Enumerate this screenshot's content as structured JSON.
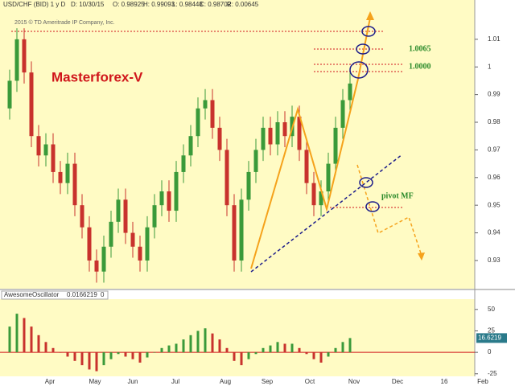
{
  "chart_data": {
    "type": "candlestick",
    "header": [
      "USD/CHF (BID) 1 y D",
      "D: 10/30/15",
      "O: 0.98925",
      "H: 0.99093",
      "L: 0.98448",
      "C: 0.98702",
      "R: 0.00645"
    ],
    "copyright": "2015 © TD Ameritrade IP Company, Inc.",
    "title": "Masterforex-V",
    "annotations": [
      "1.0065",
      "1.0000",
      "pivot MF"
    ],
    "month_labels": [
      "Apr",
      "May",
      "Jun",
      "Jul",
      "Aug",
      "Sep",
      "Oct",
      "Nov",
      "Dec",
      "16",
      "Feb"
    ],
    "ylim": [
      0.9201,
      1.0213
    ],
    "yticks": [
      0.93,
      0.94,
      0.95,
      0.96,
      0.97,
      0.98,
      0.99,
      1,
      1.01
    ],
    "candles": [
      [
        0.985,
        0.999,
        0.981,
        0.995
      ],
      [
        0.995,
        1.014,
        0.991,
        1.01
      ],
      [
        1.01,
        1.014,
        0.994,
        0.998
      ],
      [
        0.998,
        1.002,
        0.971,
        0.975
      ],
      [
        0.975,
        0.979,
        0.964,
        0.968
      ],
      [
        0.968,
        0.976,
        0.964,
        0.972
      ],
      [
        0.972,
        0.976,
        0.958,
        0.962
      ],
      [
        0.962,
        0.966,
        0.954,
        0.958
      ],
      [
        0.958,
        0.969,
        0.954,
        0.965
      ],
      [
        0.965,
        0.969,
        0.946,
        0.95
      ],
      [
        0.95,
        0.954,
        0.938,
        0.942
      ],
      [
        0.942,
        0.946,
        0.926,
        0.93
      ],
      [
        0.93,
        0.934,
        0.922,
        0.926
      ],
      [
        0.926,
        0.939,
        0.922,
        0.935
      ],
      [
        0.935,
        0.948,
        0.931,
        0.944
      ],
      [
        0.944,
        0.956,
        0.94,
        0.952
      ],
      [
        0.952,
        0.956,
        0.936,
        0.94
      ],
      [
        0.94,
        0.944,
        0.931,
        0.935
      ],
      [
        0.935,
        0.939,
        0.926,
        0.93
      ],
      [
        0.93,
        0.946,
        0.926,
        0.942
      ],
      [
        0.942,
        0.954,
        0.938,
        0.95
      ],
      [
        0.95,
        0.959,
        0.946,
        0.955
      ],
      [
        0.955,
        0.959,
        0.944,
        0.948
      ],
      [
        0.948,
        0.966,
        0.944,
        0.962
      ],
      [
        0.962,
        0.972,
        0.958,
        0.968
      ],
      [
        0.968,
        0.979,
        0.964,
        0.975
      ],
      [
        0.975,
        0.989,
        0.971,
        0.985
      ],
      [
        0.985,
        0.992,
        0.981,
        0.988
      ],
      [
        0.988,
        0.992,
        0.974,
        0.978
      ],
      [
        0.978,
        0.982,
        0.966,
        0.97
      ],
      [
        0.97,
        0.974,
        0.946,
        0.95
      ],
      [
        0.95,
        0.954,
        0.926,
        0.93
      ],
      [
        0.93,
        0.956,
        0.926,
        0.952
      ],
      [
        0.952,
        0.966,
        0.948,
        0.962
      ],
      [
        0.962,
        0.974,
        0.958,
        0.97
      ],
      [
        0.97,
        0.982,
        0.966,
        0.978
      ],
      [
        0.978,
        0.982,
        0.968,
        0.972
      ],
      [
        0.972,
        0.984,
        0.968,
        0.98
      ],
      [
        0.98,
        0.984,
        0.971,
        0.975
      ],
      [
        0.975,
        0.986,
        0.971,
        0.982
      ],
      [
        0.982,
        0.986,
        0.966,
        0.97
      ],
      [
        0.97,
        0.974,
        0.954,
        0.958
      ],
      [
        0.958,
        0.962,
        0.946,
        0.95
      ],
      [
        0.95,
        0.959,
        0.946,
        0.955
      ],
      [
        0.955,
        0.969,
        0.951,
        0.965
      ],
      [
        0.965,
        0.982,
        0.961,
        0.978
      ],
      [
        0.978,
        0.992,
        0.974,
        0.988
      ],
      [
        0.988,
        0.998,
        0.984,
        0.994
      ]
    ],
    "up_color": "#3a9a3a",
    "down_color": "#c8322d",
    "oscillator": {
      "name": "AwesomeOscillator",
      "legend_values": [
        "0.0166219",
        "0"
      ],
      "ylim": [
        -28,
        62
      ],
      "yticks": [
        -25,
        0,
        25,
        50
      ],
      "values": [
        30,
        45,
        40,
        30,
        20,
        12,
        5,
        0,
        -5,
        -10,
        -15,
        -20,
        -22,
        -15,
        -8,
        -2,
        -5,
        -8,
        -12,
        -6,
        0,
        5,
        8,
        10,
        15,
        20,
        25,
        28,
        22,
        15,
        5,
        -10,
        -15,
        -8,
        -2,
        5,
        8,
        12,
        10,
        10,
        5,
        -2,
        -8,
        -12,
        -5,
        5,
        12,
        16.6219
      ]
    }
  }
}
